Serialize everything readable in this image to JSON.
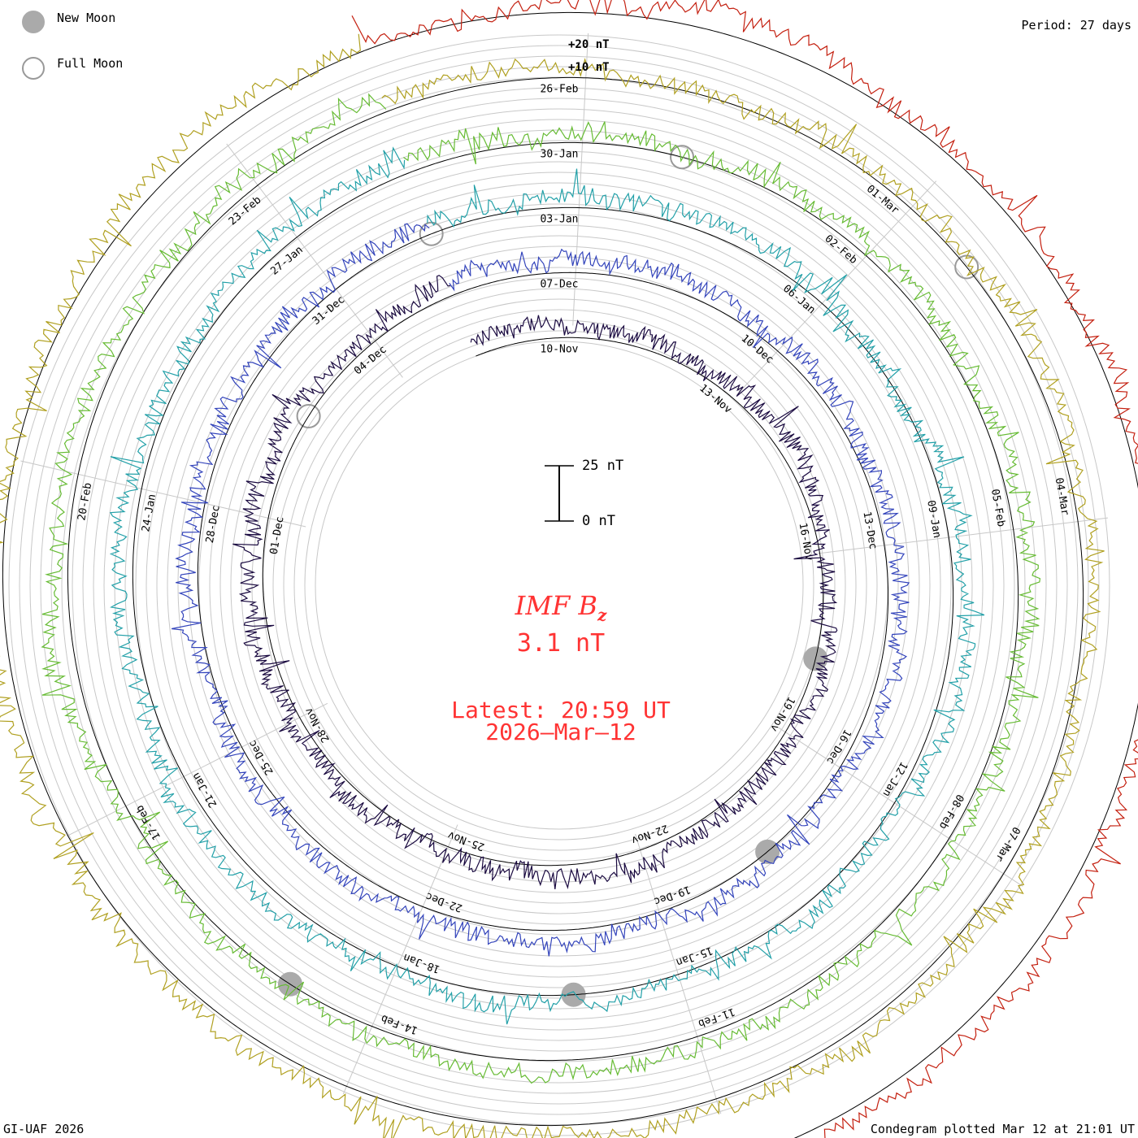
{
  "chart_data": {
    "type": "line",
    "variant": "condegram-spiral",
    "title": "IMF B",
    "title_subscript": "z",
    "current_value": "3.1 nT",
    "latest_label": "Latest: 20:59 UT",
    "latest_date": "2026–Mar–12",
    "period": "Period: 27 days",
    "footer_left": "GI-UAF 2026",
    "footer_right": "Condegram plotted Mar 12 at 21:01 UT",
    "scale_bar": {
      "top_label": "25 nT",
      "bottom_label": "0 nT",
      "range_nT": [
        0,
        25
      ]
    },
    "ring_scale_labels": [
      "+20 nT",
      "+10 nT"
    ],
    "legend": [
      {
        "label": "New Moon",
        "fill": "#aaaaaa",
        "stroke": "#aaaaaa"
      },
      {
        "label": "Full Moon",
        "fill": "#ffffff",
        "stroke": "#999999"
      }
    ],
    "revolutions": [
      {
        "color": "#1a0a40",
        "labels": [
          "10-Nov",
          "13-Nov",
          "16-Nov",
          "19-Nov",
          "22-Nov",
          "25-Nov",
          "28-Nov",
          "01-Dec",
          "04-Dec"
        ]
      },
      {
        "color": "#3344bb",
        "labels": [
          "07-Dec",
          "10-Dec",
          "13-Dec",
          "16-Dec",
          "19-Dec",
          "22-Dec",
          "25-Dec",
          "28-Dec",
          "31-Dec"
        ]
      },
      {
        "color": "#22a0a8",
        "labels": [
          "03-Jan",
          "06-Jan",
          "09-Jan",
          "12-Jan",
          "15-Jan",
          "18-Jan",
          "21-Jan",
          "24-Jan",
          "27-Jan"
        ]
      },
      {
        "color": "#66bb33",
        "labels": [
          "30-Jan",
          "02-Feb",
          "05-Feb",
          "08-Feb",
          "11-Feb",
          "14-Feb",
          "17-Feb",
          "20-Feb",
          "23-Feb"
        ]
      },
      {
        "color": "#b0a020",
        "labels": [
          "26-Feb",
          "01-Mar",
          "04-Mar",
          "07-Mar"
        ]
      },
      {
        "color": "#c42010",
        "labels": []
      }
    ],
    "moon_events": [
      {
        "phase": "new",
        "date": "20-Nov"
      },
      {
        "phase": "full",
        "date": "05-Dec"
      },
      {
        "phase": "new",
        "date": "20-Dec"
      },
      {
        "phase": "full",
        "date": "04-Jan"
      },
      {
        "phase": "new",
        "date": "18-Jan"
      },
      {
        "phase": "full",
        "date": "02-Feb"
      },
      {
        "phase": "new",
        "date": "17-Feb"
      },
      {
        "phase": "full",
        "date": "03-Mar"
      }
    ]
  }
}
